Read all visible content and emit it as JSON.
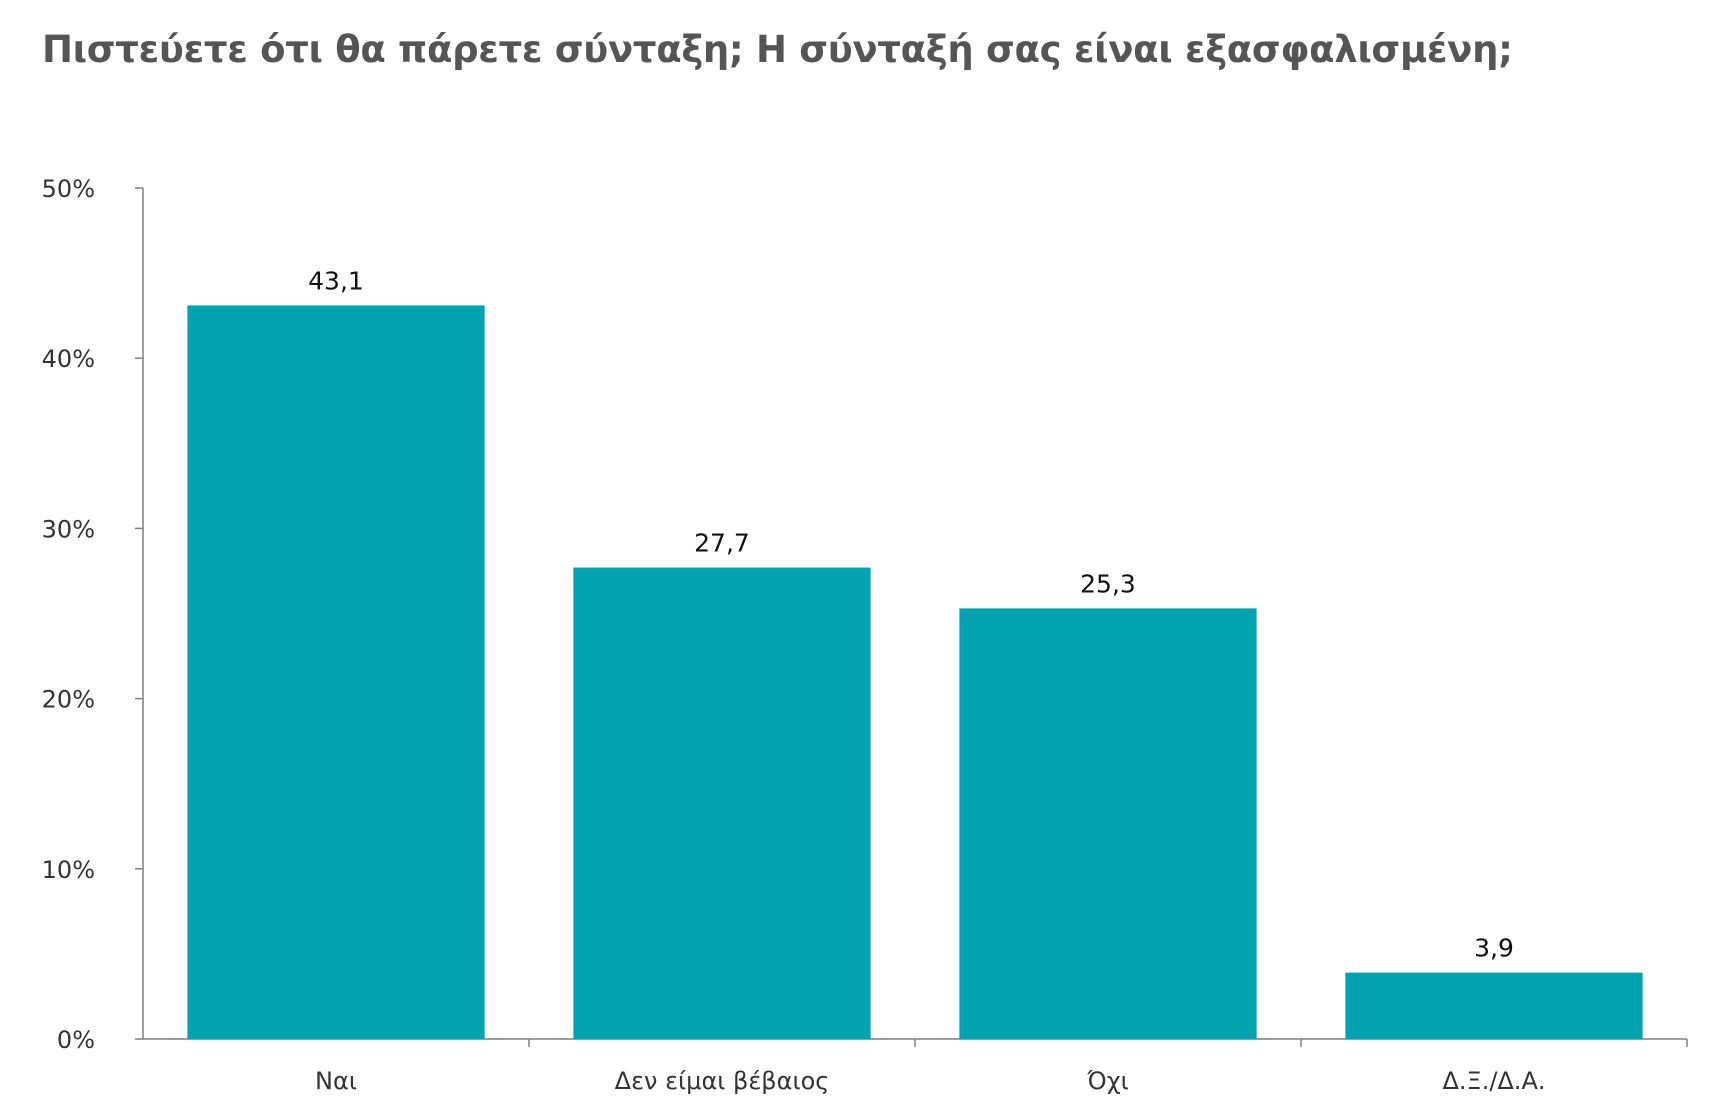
{
  "title": "Πιστεύετε ότι θα πάρετε σύνταξη; Η σύνταξή σας είναι εξασφαλισμένη;",
  "chart_data": {
    "type": "bar",
    "title": "Πιστεύετε ότι θα πάρετε σύνταξη; Η σύνταξή σας είναι εξασφαλισμένη;",
    "categories": [
      "Ναι",
      "Δεν είμαι βέβαιος",
      "Όχι",
      "Δ.Ξ./Δ.Α."
    ],
    "values": [
      43.1,
      27.7,
      25.3,
      3.9
    ],
    "data_labels": [
      "43,1",
      "27,7",
      "25,3",
      "3,9"
    ],
    "xlabel": "",
    "ylabel": "",
    "ylim": [
      0,
      50
    ],
    "yticks": [
      0,
      10,
      20,
      30,
      40,
      50
    ],
    "ytick_labels": [
      "0%",
      "10%",
      "20%",
      "30%",
      "40%",
      "50%"
    ],
    "grid": false,
    "legend": "none",
    "bar_color": "#00a3b0"
  }
}
